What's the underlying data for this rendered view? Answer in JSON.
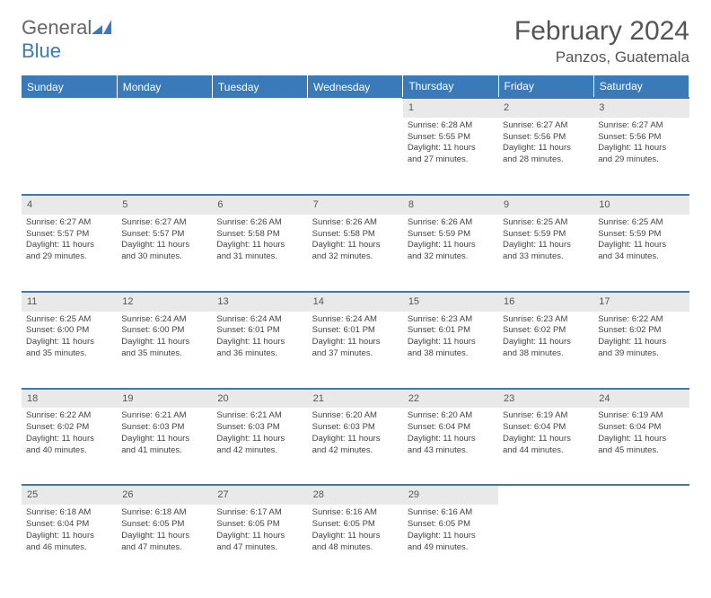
{
  "brand": {
    "name_part1": "General",
    "name_part2": "Blue",
    "mark_color": "#3a7ab8"
  },
  "title": "February 2024",
  "location": "Panzos, Guatemala",
  "header_bg": "#3a7ab8",
  "daynum_bg": "#e9e9e9",
  "day_labels": [
    "Sunday",
    "Monday",
    "Tuesday",
    "Wednesday",
    "Thursday",
    "Friday",
    "Saturday"
  ],
  "weeks": [
    [
      null,
      null,
      null,
      null,
      {
        "n": "1",
        "sr": "Sunrise: 6:28 AM",
        "ss": "Sunset: 5:55 PM",
        "d1": "Daylight: 11 hours",
        "d2": "and 27 minutes."
      },
      {
        "n": "2",
        "sr": "Sunrise: 6:27 AM",
        "ss": "Sunset: 5:56 PM",
        "d1": "Daylight: 11 hours",
        "d2": "and 28 minutes."
      },
      {
        "n": "3",
        "sr": "Sunrise: 6:27 AM",
        "ss": "Sunset: 5:56 PM",
        "d1": "Daylight: 11 hours",
        "d2": "and 29 minutes."
      }
    ],
    [
      {
        "n": "4",
        "sr": "Sunrise: 6:27 AM",
        "ss": "Sunset: 5:57 PM",
        "d1": "Daylight: 11 hours",
        "d2": "and 29 minutes."
      },
      {
        "n": "5",
        "sr": "Sunrise: 6:27 AM",
        "ss": "Sunset: 5:57 PM",
        "d1": "Daylight: 11 hours",
        "d2": "and 30 minutes."
      },
      {
        "n": "6",
        "sr": "Sunrise: 6:26 AM",
        "ss": "Sunset: 5:58 PM",
        "d1": "Daylight: 11 hours",
        "d2": "and 31 minutes."
      },
      {
        "n": "7",
        "sr": "Sunrise: 6:26 AM",
        "ss": "Sunset: 5:58 PM",
        "d1": "Daylight: 11 hours",
        "d2": "and 32 minutes."
      },
      {
        "n": "8",
        "sr": "Sunrise: 6:26 AM",
        "ss": "Sunset: 5:59 PM",
        "d1": "Daylight: 11 hours",
        "d2": "and 32 minutes."
      },
      {
        "n": "9",
        "sr": "Sunrise: 6:25 AM",
        "ss": "Sunset: 5:59 PM",
        "d1": "Daylight: 11 hours",
        "d2": "and 33 minutes."
      },
      {
        "n": "10",
        "sr": "Sunrise: 6:25 AM",
        "ss": "Sunset: 5:59 PM",
        "d1": "Daylight: 11 hours",
        "d2": "and 34 minutes."
      }
    ],
    [
      {
        "n": "11",
        "sr": "Sunrise: 6:25 AM",
        "ss": "Sunset: 6:00 PM",
        "d1": "Daylight: 11 hours",
        "d2": "and 35 minutes."
      },
      {
        "n": "12",
        "sr": "Sunrise: 6:24 AM",
        "ss": "Sunset: 6:00 PM",
        "d1": "Daylight: 11 hours",
        "d2": "and 35 minutes."
      },
      {
        "n": "13",
        "sr": "Sunrise: 6:24 AM",
        "ss": "Sunset: 6:01 PM",
        "d1": "Daylight: 11 hours",
        "d2": "and 36 minutes."
      },
      {
        "n": "14",
        "sr": "Sunrise: 6:24 AM",
        "ss": "Sunset: 6:01 PM",
        "d1": "Daylight: 11 hours",
        "d2": "and 37 minutes."
      },
      {
        "n": "15",
        "sr": "Sunrise: 6:23 AM",
        "ss": "Sunset: 6:01 PM",
        "d1": "Daylight: 11 hours",
        "d2": "and 38 minutes."
      },
      {
        "n": "16",
        "sr": "Sunrise: 6:23 AM",
        "ss": "Sunset: 6:02 PM",
        "d1": "Daylight: 11 hours",
        "d2": "and 38 minutes."
      },
      {
        "n": "17",
        "sr": "Sunrise: 6:22 AM",
        "ss": "Sunset: 6:02 PM",
        "d1": "Daylight: 11 hours",
        "d2": "and 39 minutes."
      }
    ],
    [
      {
        "n": "18",
        "sr": "Sunrise: 6:22 AM",
        "ss": "Sunset: 6:02 PM",
        "d1": "Daylight: 11 hours",
        "d2": "and 40 minutes."
      },
      {
        "n": "19",
        "sr": "Sunrise: 6:21 AM",
        "ss": "Sunset: 6:03 PM",
        "d1": "Daylight: 11 hours",
        "d2": "and 41 minutes."
      },
      {
        "n": "20",
        "sr": "Sunrise: 6:21 AM",
        "ss": "Sunset: 6:03 PM",
        "d1": "Daylight: 11 hours",
        "d2": "and 42 minutes."
      },
      {
        "n": "21",
        "sr": "Sunrise: 6:20 AM",
        "ss": "Sunset: 6:03 PM",
        "d1": "Daylight: 11 hours",
        "d2": "and 42 minutes."
      },
      {
        "n": "22",
        "sr": "Sunrise: 6:20 AM",
        "ss": "Sunset: 6:04 PM",
        "d1": "Daylight: 11 hours",
        "d2": "and 43 minutes."
      },
      {
        "n": "23",
        "sr": "Sunrise: 6:19 AM",
        "ss": "Sunset: 6:04 PM",
        "d1": "Daylight: 11 hours",
        "d2": "and 44 minutes."
      },
      {
        "n": "24",
        "sr": "Sunrise: 6:19 AM",
        "ss": "Sunset: 6:04 PM",
        "d1": "Daylight: 11 hours",
        "d2": "and 45 minutes."
      }
    ],
    [
      {
        "n": "25",
        "sr": "Sunrise: 6:18 AM",
        "ss": "Sunset: 6:04 PM",
        "d1": "Daylight: 11 hours",
        "d2": "and 46 minutes."
      },
      {
        "n": "26",
        "sr": "Sunrise: 6:18 AM",
        "ss": "Sunset: 6:05 PM",
        "d1": "Daylight: 11 hours",
        "d2": "and 47 minutes."
      },
      {
        "n": "27",
        "sr": "Sunrise: 6:17 AM",
        "ss": "Sunset: 6:05 PM",
        "d1": "Daylight: 11 hours",
        "d2": "and 47 minutes."
      },
      {
        "n": "28",
        "sr": "Sunrise: 6:16 AM",
        "ss": "Sunset: 6:05 PM",
        "d1": "Daylight: 11 hours",
        "d2": "and 48 minutes."
      },
      {
        "n": "29",
        "sr": "Sunrise: 6:16 AM",
        "ss": "Sunset: 6:05 PM",
        "d1": "Daylight: 11 hours",
        "d2": "and 49 minutes."
      },
      null,
      null
    ]
  ]
}
